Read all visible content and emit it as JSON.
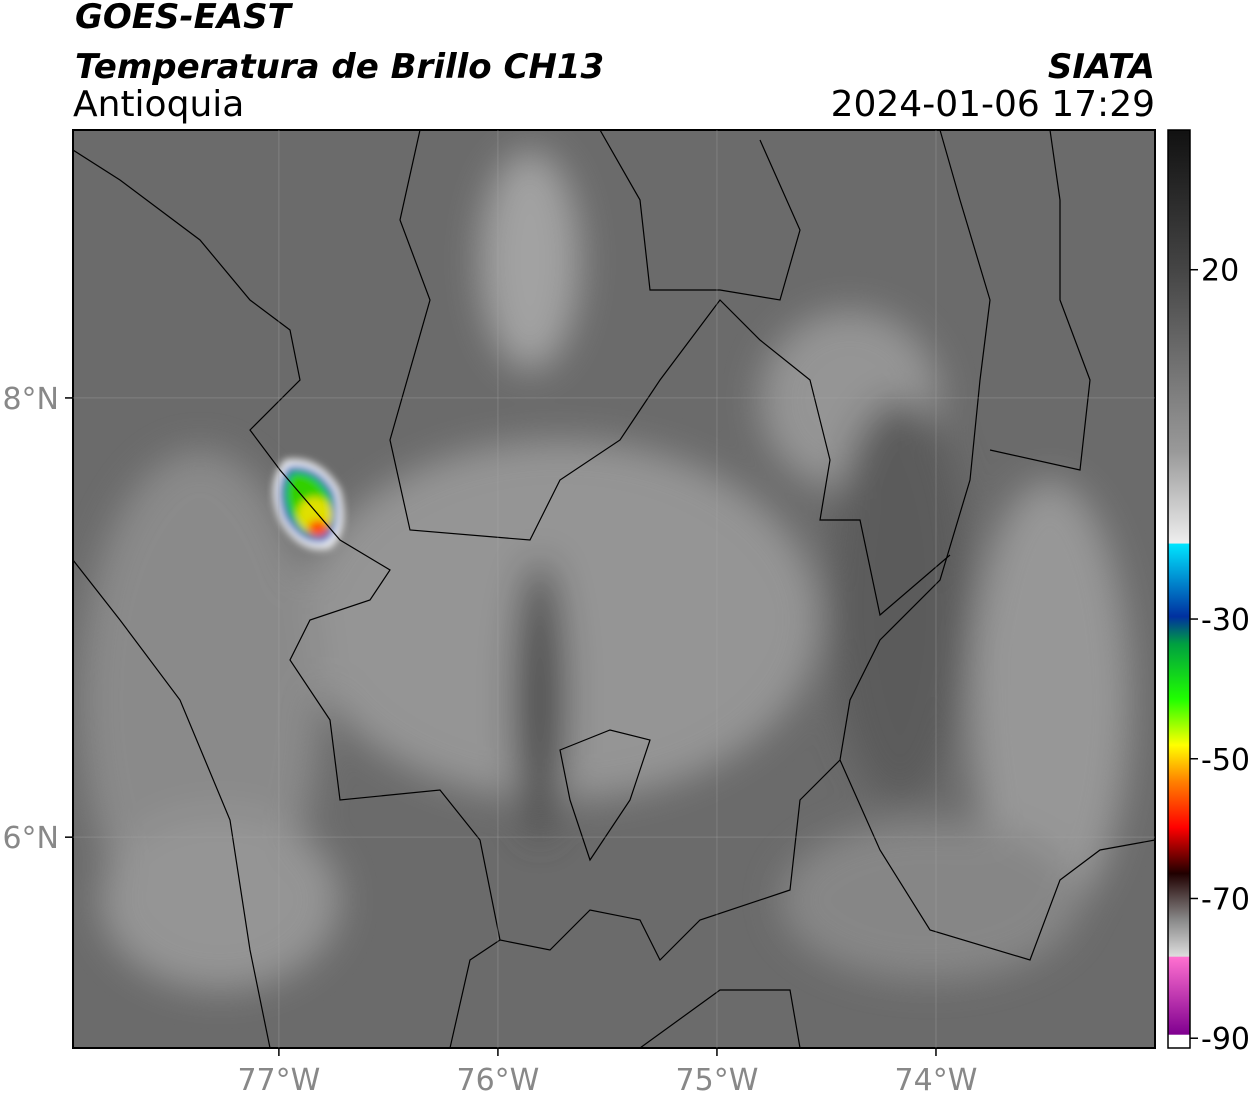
{
  "header": {
    "title": "GOES-EAST",
    "subtitle": "Temperatura de Brillo CH13",
    "region": "Antioquia",
    "source": "SIATA",
    "datetime": "2024-01-06 17:29"
  },
  "map": {
    "xlim": [
      -77.94,
      -73.0
    ],
    "ylim": [
      5.04,
      9.22
    ],
    "xticks": [
      {
        "value": -77,
        "label": "77°W"
      },
      {
        "value": -76,
        "label": "76°W"
      },
      {
        "value": -75,
        "label": "75°W"
      },
      {
        "value": -74,
        "label": "74°W"
      }
    ],
    "yticks": [
      {
        "value": 6,
        "label": "6°N"
      },
      {
        "value": 8,
        "label": "8°N"
      }
    ]
  },
  "colorbar": {
    "lim": [
      -91.4,
      40
    ],
    "ticks": [
      20,
      -30,
      -50,
      -70,
      -90
    ]
  }
}
